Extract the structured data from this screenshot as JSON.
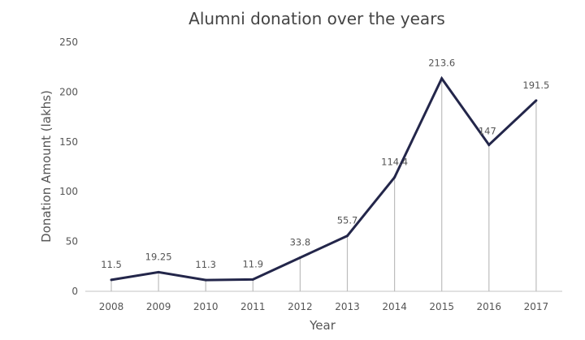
{
  "chart_data": {
    "type": "line",
    "title": "Alumni donation over the years",
    "xlabel": "Year",
    "ylabel": "Donation Amount (lakhs)",
    "categories": [
      "2008",
      "2009",
      "2010",
      "2011",
      "2012",
      "2013",
      "2014",
      "2015",
      "2016",
      "2017"
    ],
    "values": [
      11.5,
      19.25,
      11.3,
      11.9,
      33.8,
      55.7,
      114.4,
      213.6,
      147,
      191.5
    ],
    "data_labels": [
      "11.5",
      "19.25",
      "11.3",
      "11.9",
      "33.8",
      "55.7",
      "114.4",
      "213.6",
      "147",
      "191.5"
    ],
    "ylim": [
      0,
      250
    ],
    "yticks": [
      "0",
      "50",
      "100",
      "150",
      "200",
      "250"
    ],
    "grid": false,
    "drop_lines": true,
    "line_color": "#23264a",
    "drop_line_color": "#bdbdbd"
  }
}
